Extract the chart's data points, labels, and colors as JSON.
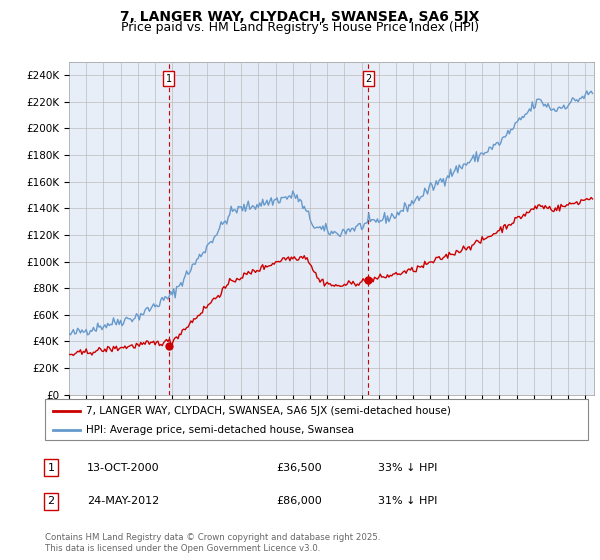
{
  "title": "7, LANGER WAY, CLYDACH, SWANSEA, SA6 5JX",
  "subtitle": "Price paid vs. HM Land Registry's House Price Index (HPI)",
  "ylabel_ticks": [
    "£0",
    "£20K",
    "£40K",
    "£60K",
    "£80K",
    "£100K",
    "£120K",
    "£140K",
    "£160K",
    "£180K",
    "£200K",
    "£220K",
    "£240K"
  ],
  "ytick_values": [
    0,
    20000,
    40000,
    60000,
    80000,
    100000,
    120000,
    140000,
    160000,
    180000,
    200000,
    220000,
    240000
  ],
  "ylim": [
    0,
    250000
  ],
  "xlim_start": 1995.0,
  "xlim_end": 2025.5,
  "background_color": "#e8eef8",
  "fig_bg_color": "#ffffff",
  "grid_color": "#bbbbbb",
  "red_line_color": "#cc0000",
  "blue_line_color": "#6699cc",
  "vline_color": "#cc0000",
  "shade_color": "#dde8f5",
  "marker1_date": 2000.79,
  "marker2_date": 2012.39,
  "marker1_price": 36500,
  "marker2_price": 86000,
  "annotation1_label": "1",
  "annotation2_label": "2",
  "legend_red": "7, LANGER WAY, CLYDACH, SWANSEA, SA6 5JX (semi-detached house)",
  "legend_blue": "HPI: Average price, semi-detached house, Swansea",
  "table_row1": [
    "1",
    "13-OCT-2000",
    "£36,500",
    "33% ↓ HPI"
  ],
  "table_row2": [
    "2",
    "24-MAY-2012",
    "£86,000",
    "31% ↓ HPI"
  ],
  "footer": "Contains HM Land Registry data © Crown copyright and database right 2025.\nThis data is licensed under the Open Government Licence v3.0.",
  "title_fontsize": 10,
  "subtitle_fontsize": 9,
  "tick_fontsize": 7.5,
  "legend_fontsize": 8
}
